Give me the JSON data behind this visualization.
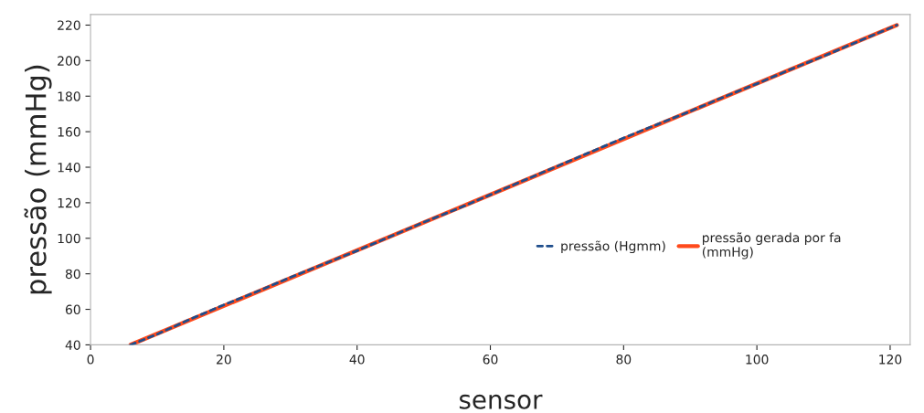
{
  "chart_data": {
    "type": "line",
    "xlabel": "sensor",
    "ylabel": "pressão (mmHg)",
    "xlim": [
      0,
      123
    ],
    "ylim": [
      40,
      226
    ],
    "xticks": [
      0,
      20,
      40,
      60,
      80,
      100,
      120
    ],
    "yticks": [
      40,
      60,
      80,
      100,
      120,
      140,
      160,
      180,
      200,
      220
    ],
    "grid": false,
    "legend": "right",
    "marker": "none",
    "series": [
      {
        "name": "pressão (Hgmm)",
        "color": "#1f4e8c",
        "line_style": "dashed",
        "x": [
          6,
          10,
          15,
          20,
          25,
          30,
          35,
          40,
          45,
          50,
          55,
          60,
          65,
          70,
          75,
          80,
          85,
          90,
          95,
          100,
          105,
          110,
          115,
          121
        ],
        "values": [
          40,
          46,
          54.5,
          62.5,
          70,
          78,
          85.5,
          93,
          101,
          109,
          116.5,
          124.5,
          132.5,
          140.5,
          148.5,
          156.5,
          164,
          171.5,
          179.5,
          187,
          195,
          202.5,
          210.5,
          220
        ]
      },
      {
        "name": "pressão gerada por fa\n(mmHg)",
        "color": "#ff4a1c",
        "line_style": "solid",
        "x": [
          6,
          121
        ],
        "values": [
          40,
          220
        ]
      }
    ]
  }
}
